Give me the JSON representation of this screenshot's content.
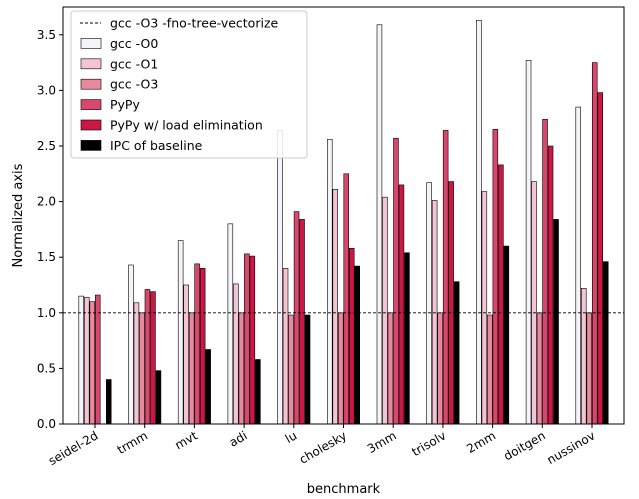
{
  "chart_data": {
    "type": "bar",
    "xlabel": "benchmark",
    "ylabel": "Normalized axis",
    "ylim": [
      0,
      3.75
    ],
    "yticks": [
      "0.0",
      "0.5",
      "1.0",
      "1.5",
      "2.0",
      "2.5",
      "3.0",
      "3.5"
    ],
    "categories": [
      "seidel-2d",
      "trmm",
      "mvt",
      "adi",
      "lu",
      "cholesky",
      "3mm",
      "trisolv",
      "2mm",
      "doitgen",
      "nussinov"
    ],
    "reference_line": {
      "label": "gcc -O3 -fno-tree-vectorize",
      "value": 1.0,
      "style": "dashed"
    },
    "legend_position": "top-left",
    "grid": false,
    "series": [
      {
        "name": "gcc -O0",
        "color": "#f7f4f9",
        "values": [
          1.15,
          1.43,
          1.65,
          1.8,
          2.64,
          2.56,
          3.59,
          2.17,
          3.63,
          3.27,
          2.85
        ]
      },
      {
        "name": "gcc -O1",
        "color": "#f2c4d4",
        "values": [
          1.14,
          1.09,
          1.25,
          1.26,
          1.4,
          2.11,
          2.04,
          2.01,
          2.09,
          2.18,
          1.22
        ]
      },
      {
        "name": "gcc -O3",
        "color": "#e8899e",
        "values": [
          1.1,
          1.0,
          1.0,
          1.0,
          0.98,
          1.0,
          1.0,
          1.0,
          0.98,
          1.0,
          1.0
        ]
      },
      {
        "name": "PyPy",
        "color": "#d9476d",
        "values": [
          1.16,
          1.21,
          1.44,
          1.53,
          1.91,
          2.25,
          2.57,
          2.64,
          2.65,
          2.74,
          3.25
        ]
      },
      {
        "name": "PyPy w/ load elimination",
        "color": "#cc1744",
        "values": [
          null,
          1.19,
          1.4,
          1.51,
          1.84,
          1.58,
          2.15,
          2.18,
          2.33,
          2.5,
          2.98
        ]
      },
      {
        "name": "IPC of baseline",
        "color": "#000000",
        "values": [
          0.4,
          0.48,
          0.67,
          0.58,
          0.98,
          1.42,
          1.54,
          1.28,
          1.6,
          1.84,
          1.46
        ]
      }
    ]
  }
}
